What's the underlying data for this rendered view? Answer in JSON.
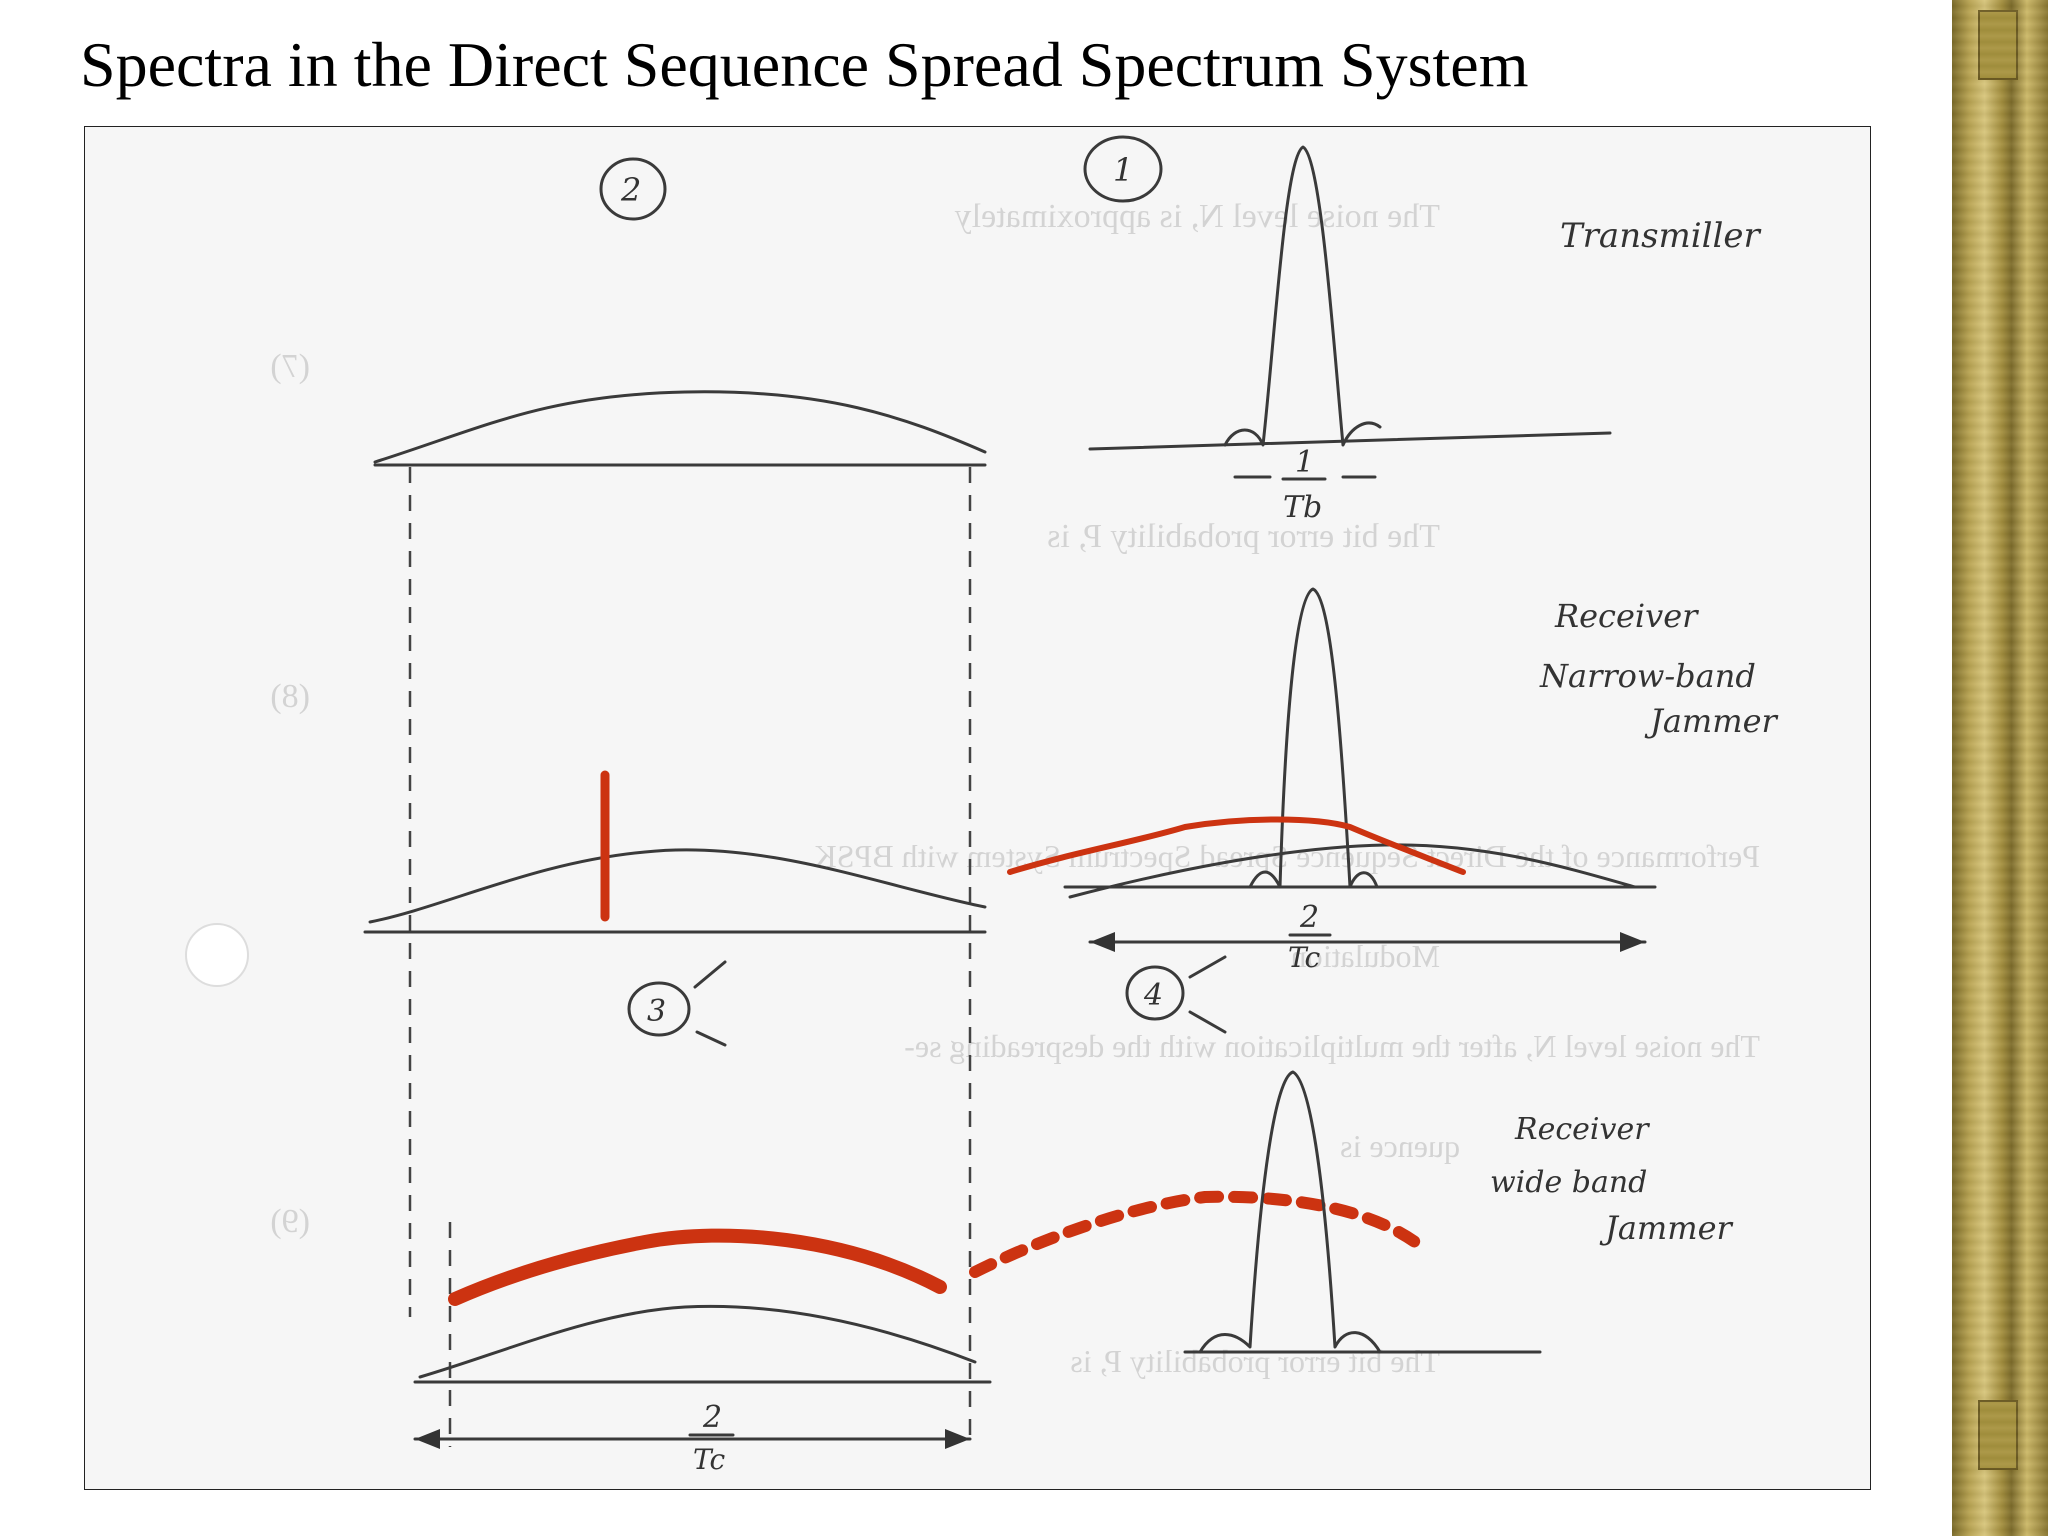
{
  "slide": {
    "title": "Spectra in the Direct Sequence Spread Spectrum System"
  },
  "annotations": {
    "circle_1": "1",
    "circle_2": "2",
    "circle_3": "3",
    "circle_4": "4",
    "transmitter": "Transmiller",
    "receiver": "Receiver",
    "narrowband_line1": "Narrow-band",
    "narrowband_line2": "Jammer",
    "receiver_wide": "Receiver",
    "wideband_line1": "wide band",
    "wideband_line2": "Jammer",
    "bit_width_num": "1",
    "bit_width_den": "Tb",
    "chip_width_num_a": "2",
    "chip_width_den_a": "Tc",
    "chip_width_num_b": "2",
    "chip_width_den_b": "Tc"
  },
  "background_text": {
    "line1": "The noise level N, is approximately",
    "line2": "The bit error probability P, is",
    "line3": "Performance of the Direct Sequence Spread Spectrum System with BPSK",
    "line4": "Modulation",
    "line5": "The noise level N, after the multiplication with the despreading se-",
    "line6": "quence is",
    "line7": "The bit error probability P, is",
    "eq7": "(7)",
    "eq8": "(8)",
    "eq9": "(9)"
  },
  "colors": {
    "jammer_red": "#cc3311",
    "pencil": "#3a3a3a",
    "sidebar_gold": "#b9a452"
  }
}
